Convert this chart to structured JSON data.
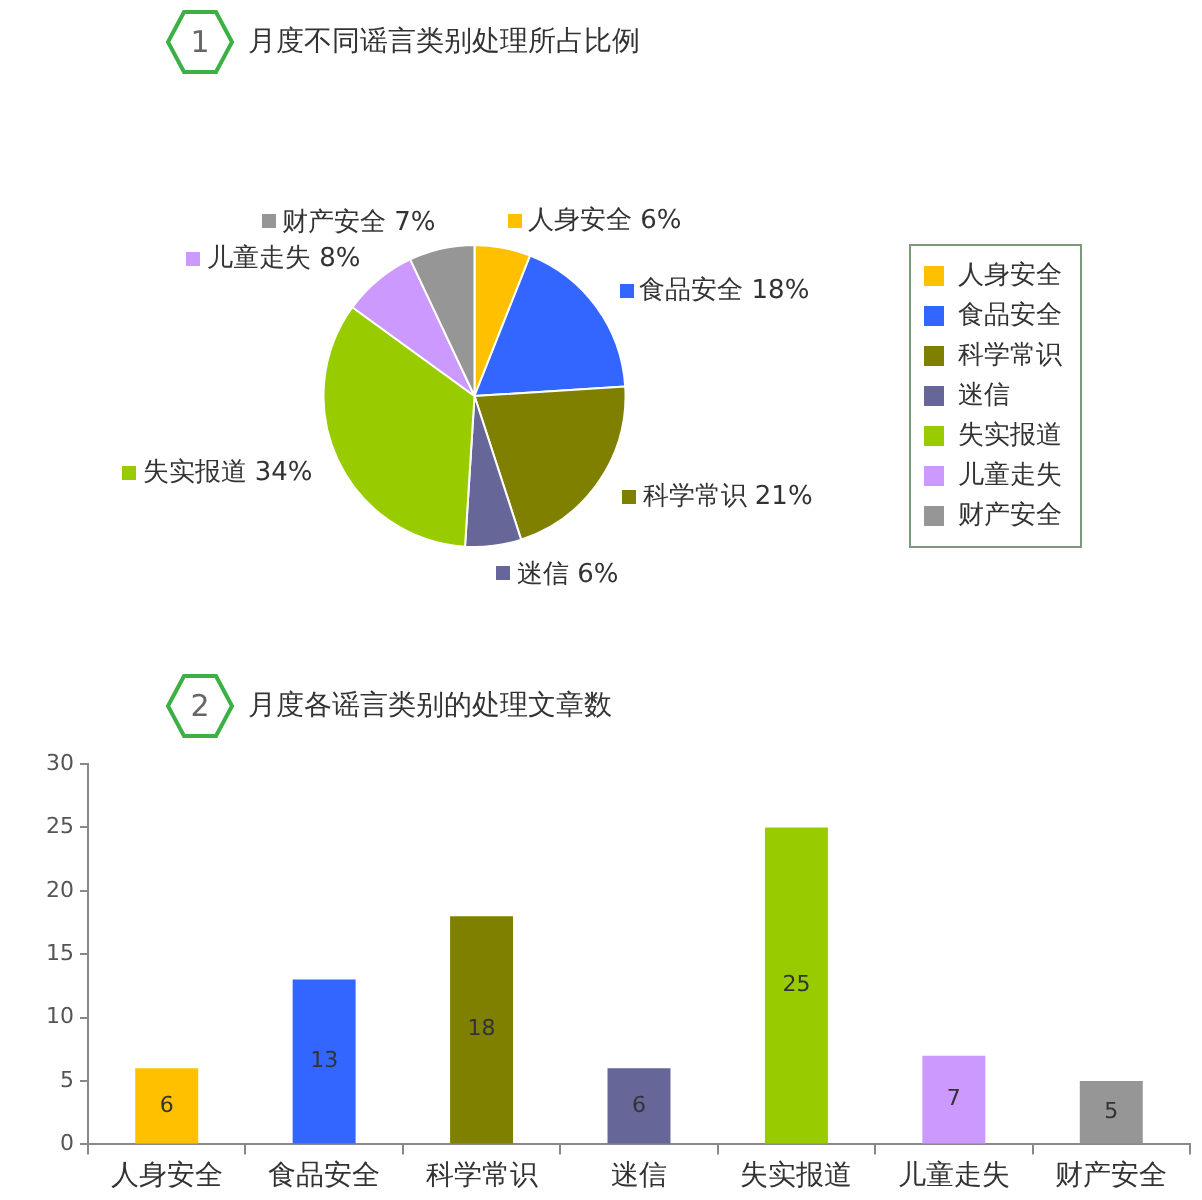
{
  "chart_data": [
    {
      "type": "pie",
      "title": "月度不同谣言类别处理所占比例",
      "annotations": [
        "1"
      ],
      "categories": [
        "人身安全",
        "食品安全",
        "科学常识",
        "迷信",
        "失实报道",
        "儿童走失",
        "财产安全"
      ],
      "values": [
        6,
        18,
        21,
        6,
        34,
        8,
        7
      ],
      "colors": [
        "#ffc000",
        "#3366ff",
        "#808000",
        "#666699",
        "#99cc00",
        "#cc99ff",
        "#969696"
      ],
      "value_labels": [
        "人身安全 6%",
        "食品安全 18%",
        "科学常识 21%",
        "迷信 6%",
        "失实报道 34%",
        "儿童走失 8%",
        "财产安全 7%"
      ],
      "legend": "right"
    },
    {
      "type": "bar",
      "title": "月度各谣言类别的处理文章数",
      "annotations": [
        "2"
      ],
      "categories": [
        "人身安全",
        "食品安全",
        "科学常识",
        "迷信",
        "失实报道",
        "儿童走失",
        "财产安全"
      ],
      "values": [
        6,
        13,
        18,
        6,
        25,
        7,
        5
      ],
      "colors": [
        "#ffc000",
        "#3366ff",
        "#808000",
        "#666699",
        "#99cc00",
        "#cc99ff",
        "#969696"
      ],
      "ylim": [
        0,
        30
      ],
      "yticks": [
        0,
        5,
        10,
        15,
        20,
        25,
        30
      ],
      "data_labels": true,
      "grid": false,
      "legend": false
    }
  ]
}
